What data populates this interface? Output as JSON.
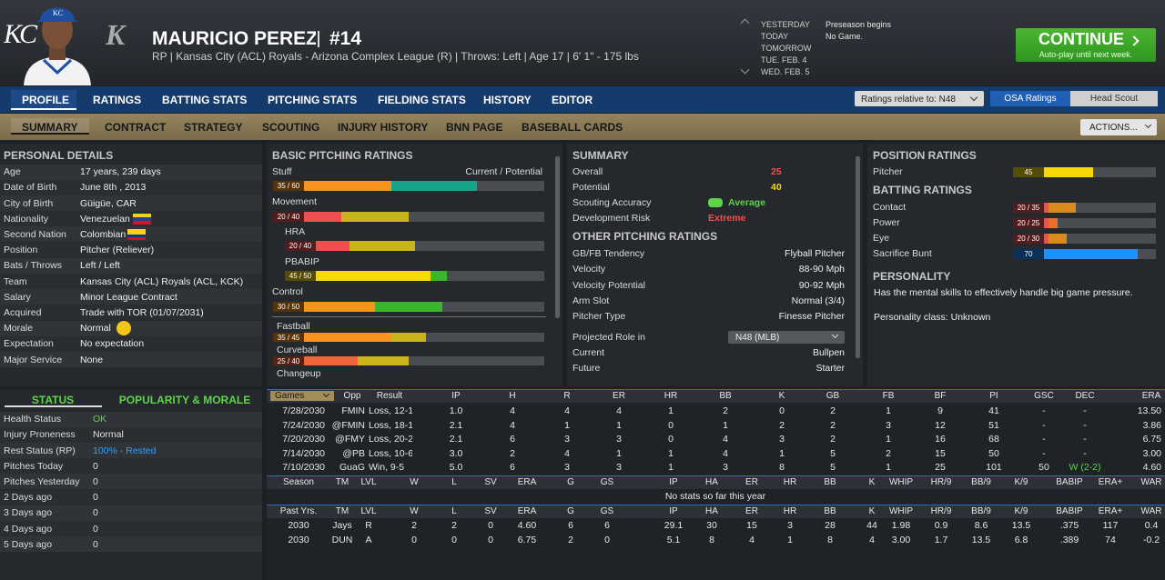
{
  "header": {
    "logo": "KC",
    "alt_logo": "K",
    "name": "MAURICIO PEREZ",
    "number": "#14",
    "subtitle": "RP | Kansas City (ACL) Royals - Arizona Complex League (R) | Throws: Left | Age 17 | 6' 1\" - 175 lbs"
  },
  "calendar": {
    "days": [
      "YESTERDAY",
      "TODAY",
      "TOMORROW",
      "TUE. FEB. 4",
      "WED. FEB. 5"
    ],
    "events": [
      "Preseason begins",
      "No Game."
    ]
  },
  "continue_button": {
    "label": "CONTINUE",
    "sublabel": "Auto-play until next week."
  },
  "nav": {
    "tabs": [
      "PROFILE",
      "RATINGS",
      "BATTING STATS",
      "PITCHING STATS",
      "FIELDING STATS",
      "HISTORY",
      "EDITOR"
    ],
    "ratings_dropdown": "Ratings relative to: N48",
    "toggles": [
      "OSA Ratings",
      "Head Scout"
    ]
  },
  "subnav": {
    "tabs": [
      "SUMMARY",
      "CONTRACT",
      "STRATEGY",
      "SCOUTING",
      "INJURY HISTORY",
      "BNN PAGE",
      "BASEBALL CARDS"
    ],
    "actions": "ACTIONS..."
  },
  "rating_scale": [
    0,
    80
  ],
  "personal_details": {
    "title": "PERSONAL DETAILS",
    "rows": [
      [
        "Age",
        "17 years, 239 days"
      ],
      [
        "Date of Birth",
        "June 8th , 2013"
      ],
      [
        "City of Birth",
        "Güigüe, CAR"
      ],
      [
        "Nationality",
        "Venezuelan"
      ],
      [
        "Second Nation",
        "Colombian"
      ],
      [
        "Position",
        "Pitcher (Reliever)"
      ],
      [
        "Bats / Throws",
        "Left / Left"
      ],
      [
        "Team",
        "Kansas City (ACL) Royals (ACL, KCK)"
      ],
      [
        "Salary",
        "Minor League Contract"
      ],
      [
        "Acquired",
        "Trade with TOR (01/07/2031)"
      ],
      [
        "Morale",
        "Normal"
      ],
      [
        "Expectation",
        "No expectation"
      ],
      [
        "Major Service",
        "None"
      ]
    ]
  },
  "basic_pitching_ratings": {
    "title": "BASIC PITCHING RATINGS",
    "legend": "Current / Potential",
    "ratings": [
      {
        "name": "Stuff",
        "label": "35 / 60",
        "current": 35,
        "potential": 60,
        "colors": [
          "#f7941d",
          "#17a589"
        ]
      },
      {
        "name": "Movement",
        "label": "20 / 40",
        "current": 20,
        "potential": 40,
        "colors": [
          "#ef4f4f",
          "#c9b41c"
        ]
      },
      {
        "name": "HRA",
        "label": "20 / 40",
        "current": 20,
        "potential": 40,
        "colors": [
          "#ef4f4f",
          "#c9b41c"
        ]
      },
      {
        "name": "PBABIP",
        "label": "45 / 50",
        "current": 45,
        "potential": 50,
        "colors": [
          "#f5d90a",
          "#3cb52e"
        ]
      },
      {
        "name": "Control",
        "label": "30 / 50",
        "current": 30,
        "potential": 50,
        "colors": [
          "#f7941d",
          "#3cb52e"
        ]
      }
    ],
    "pitches": [
      {
        "name": "Fastball",
        "label": "35 / 45",
        "current": 35,
        "potential": 45,
        "colors": [
          "#f7941d",
          "#c9b41c"
        ]
      },
      {
        "name": "Curveball",
        "label": "25 / 40",
        "current": 25,
        "potential": 40,
        "colors": [
          "#f0643c",
          "#c9b41c"
        ]
      },
      {
        "name": "Changeup"
      }
    ]
  },
  "summary": {
    "title": "SUMMARY",
    "rows": [
      {
        "label": "Overall",
        "value": 25,
        "color": "#ff4b4b"
      },
      {
        "label": "Potential",
        "value": 40,
        "color": "#f5d90a"
      },
      {
        "label": "Scouting Accuracy",
        "value": "Average",
        "color": "#5fd34a"
      },
      {
        "label": "Development Risk",
        "value": "Extreme",
        "color": "#ff4b4b"
      }
    ]
  },
  "other_pitching_ratings": {
    "title": "OTHER PITCHING RATINGS",
    "rows": [
      [
        "GB/FB Tendency",
        "Flyball Pitcher"
      ],
      [
        "Velocity",
        "88-90 Mph"
      ],
      [
        "Velocity Potential",
        "90-92 Mph"
      ],
      [
        "Arm Slot",
        "Normal (3/4)"
      ],
      [
        "Pitcher Type",
        "Finesse Pitcher"
      ]
    ],
    "projected_role": {
      "label": "Projected Role in",
      "value": "N48 (MLB)"
    },
    "roles": [
      [
        "Current",
        "Bullpen"
      ],
      [
        "Future",
        "Starter"
      ]
    ]
  },
  "position_ratings": {
    "title": "POSITION RATINGS",
    "ratings": [
      {
        "name": "Pitcher",
        "label": "45",
        "current": 45,
        "colors": [
          "#f5d90a"
        ]
      }
    ]
  },
  "batting_ratings": {
    "title": "BATTING RATINGS",
    "ratings": [
      {
        "name": "Contact",
        "label": "20 / 35",
        "current": 20,
        "potential": 35,
        "colors": [
          "#ef4f4f",
          "#d98a1a"
        ]
      },
      {
        "name": "Power",
        "label": "20 / 25",
        "current": 20,
        "potential": 25,
        "colors": [
          "#ef4f4f",
          "#e8702c"
        ]
      },
      {
        "name": "Eye",
        "label": "20 / 30",
        "current": 20,
        "potential": 30,
        "colors": [
          "#ef4f4f",
          "#d98a1a"
        ]
      },
      {
        "name": "Sacrifice Bunt",
        "label": "70",
        "current": 70,
        "colors": [
          "#1e90ff"
        ]
      }
    ]
  },
  "personality": {
    "title": "PERSONALITY",
    "text": "Has the mental skills to effectively handle big game pressure.",
    "class": "Personality class: Unknown"
  },
  "status": {
    "tabs": [
      "STATUS",
      "POPULARITY & MORALE"
    ],
    "rows": [
      {
        "label": "Health Status",
        "value": "OK",
        "color": "#5fd34a"
      },
      {
        "label": "Injury Proneness",
        "value": "Normal",
        "color": "#e0e0e0"
      },
      {
        "label": "Rest Status (RP)",
        "value": "100% - Rested",
        "color": "#3a9ef0"
      },
      {
        "label": "Pitches Today",
        "value": "0",
        "color": "#e0e0e0"
      },
      {
        "label": "Pitches Yesterday",
        "value": "0",
        "color": "#e0e0e0"
      },
      {
        "label": "2 Days ago",
        "value": "0",
        "color": "#e0e0e0"
      },
      {
        "label": "3 Days ago",
        "value": "0",
        "color": "#e0e0e0"
      },
      {
        "label": "4 Days ago",
        "value": "0",
        "color": "#e0e0e0"
      },
      {
        "label": "5 Days ago",
        "value": "0",
        "color": "#e0e0e0"
      }
    ]
  },
  "game_log": {
    "columns": [
      "Games",
      "Opp",
      "Result",
      "IP",
      "H",
      "R",
      "ER",
      "HR",
      "BB",
      "K",
      "GB",
      "FB",
      "BF",
      "PI",
      "GSC",
      "DEC",
      "ERA"
    ],
    "rows": [
      [
        "7/28/2030",
        "FMIN",
        "Loss, 12-1",
        "1.0",
        "4",
        "4",
        "4",
        "1",
        "2",
        "0",
        "2",
        "1",
        "9",
        "41",
        "-",
        "-",
        "13.50"
      ],
      [
        "7/24/2030",
        "@FMIN",
        "Loss, 18-1",
        "2.1",
        "4",
        "1",
        "1",
        "0",
        "1",
        "2",
        "2",
        "3",
        "12",
        "51",
        "-",
        "-",
        "3.86"
      ],
      [
        "7/20/2030",
        "@FMY",
        "Loss, 20-2",
        "2.1",
        "6",
        "3",
        "3",
        "0",
        "4",
        "3",
        "2",
        "1",
        "16",
        "68",
        "-",
        "-",
        "6.75"
      ],
      [
        "7/14/2030",
        "@PB",
        "Loss, 10-6",
        "3.0",
        "2",
        "4",
        "1",
        "1",
        "4",
        "1",
        "5",
        "2",
        "15",
        "50",
        "-",
        "-",
        "3.00"
      ],
      [
        "7/10/2030",
        "GuaG",
        "Win, 9-5",
        "5.0",
        "6",
        "3",
        "3",
        "1",
        "3",
        "8",
        "5",
        "1",
        "25",
        "101",
        "50",
        "W (2-2)",
        "4.60"
      ]
    ]
  },
  "season_stats": {
    "columns": [
      "Season",
      "TM",
      "LVL",
      "W",
      "L",
      "SV",
      "ERA",
      "G",
      "GS",
      "IP",
      "HA",
      "ER",
      "HR",
      "BB",
      "K",
      "WHIP",
      "HR/9",
      "BB/9",
      "K/9",
      "BABIP",
      "ERA+",
      "WAR"
    ],
    "empty": "No stats so far this year"
  },
  "past_stats": {
    "columns": [
      "Past Yrs.",
      "TM",
      "LVL",
      "W",
      "L",
      "SV",
      "ERA",
      "G",
      "GS",
      "IP",
      "HA",
      "ER",
      "HR",
      "BB",
      "K",
      "WHIP",
      "HR/9",
      "BB/9",
      "K/9",
      "BABIP",
      "ERA+",
      "WAR"
    ],
    "rows": [
      [
        "2030",
        "Jays",
        "R",
        "2",
        "2",
        "0",
        "4.60",
        "6",
        "6",
        "29.1",
        "30",
        "15",
        "3",
        "28",
        "44",
        "1.98",
        "0.9",
        "8.6",
        "13.5",
        ".375",
        "117",
        "0.4"
      ],
      [
        "2030",
        "DUN",
        "A",
        "0",
        "0",
        "0",
        "6.75",
        "2",
        "0",
        "5.1",
        "8",
        "4",
        "1",
        "8",
        "4",
        "3.00",
        "1.7",
        "13.5",
        "6.8",
        ".389",
        "74",
        "-0.2"
      ]
    ]
  }
}
